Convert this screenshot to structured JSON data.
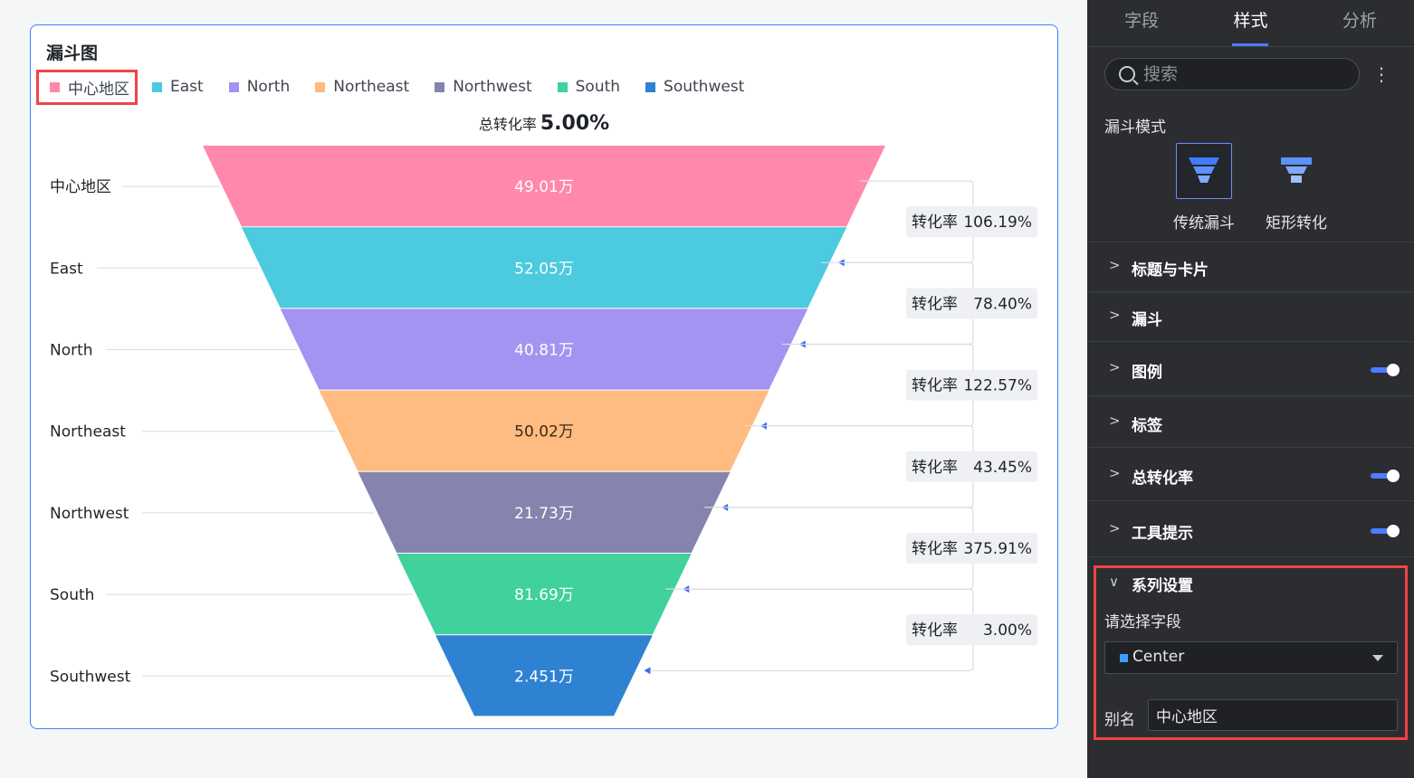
{
  "chart": {
    "title": "漏斗图",
    "total_rate_label": "总转化率",
    "total_rate_value": "5.00%",
    "legend": [
      {
        "label": "中心地区",
        "color": "#ff88ab"
      },
      {
        "label": "East",
        "color": "#4ccadf"
      },
      {
        "label": "North",
        "color": "#a394f2"
      },
      {
        "label": "Northeast",
        "color": "#ffbb80"
      },
      {
        "label": "Northwest",
        "color": "#8584ae"
      },
      {
        "label": "South",
        "color": "#40d19d"
      },
      {
        "label": "Southwest",
        "color": "#2f82d2"
      }
    ]
  },
  "chart_data": {
    "type": "funnel",
    "title": "漏斗图",
    "categories": [
      "中心地区",
      "East",
      "North",
      "Northeast",
      "Northwest",
      "South",
      "Southwest"
    ],
    "values": [
      490100,
      520500,
      408100,
      500200,
      217300,
      816900,
      24510
    ],
    "value_labels": [
      "49.01万",
      "52.05万",
      "40.81万",
      "50.02万",
      "21.73万",
      "81.69万",
      "2.451万"
    ],
    "colors": [
      "#ff88ab",
      "#4ccadf",
      "#a394f2",
      "#ffbb80",
      "#8584ae",
      "#40d19d",
      "#2f82d2"
    ],
    "conversion_rate_label": "转化率",
    "conversion_rates": [
      "106.19%",
      "78.40%",
      "122.57%",
      "43.45%",
      "375.91%",
      "3.00%"
    ],
    "total_conversion_rate": "5.00%",
    "legend_position": "top-left"
  },
  "panel": {
    "tabs": [
      {
        "label": "字段",
        "active": false
      },
      {
        "label": "样式",
        "active": true
      },
      {
        "label": "分析",
        "active": false
      }
    ],
    "search_placeholder": "搜索",
    "mode_title": "漏斗模式",
    "modes": [
      {
        "label": "传统漏斗",
        "icon": "funnel-classic-icon",
        "selected": true
      },
      {
        "label": "矩形转化",
        "icon": "funnel-rect-icon",
        "selected": false
      }
    ],
    "sections": [
      {
        "label": "标题与卡片",
        "toggle": false
      },
      {
        "label": "漏斗",
        "toggle": false
      },
      {
        "label": "图例",
        "toggle": true
      },
      {
        "label": "标签",
        "toggle": false
      },
      {
        "label": "总转化率",
        "toggle": true
      },
      {
        "label": "工具提示",
        "toggle": true
      }
    ],
    "series": {
      "label": "系列设置",
      "field_label": "请选择字段",
      "field_value": "Center",
      "alias_label": "别名",
      "alias_value": "中心地区"
    }
  }
}
